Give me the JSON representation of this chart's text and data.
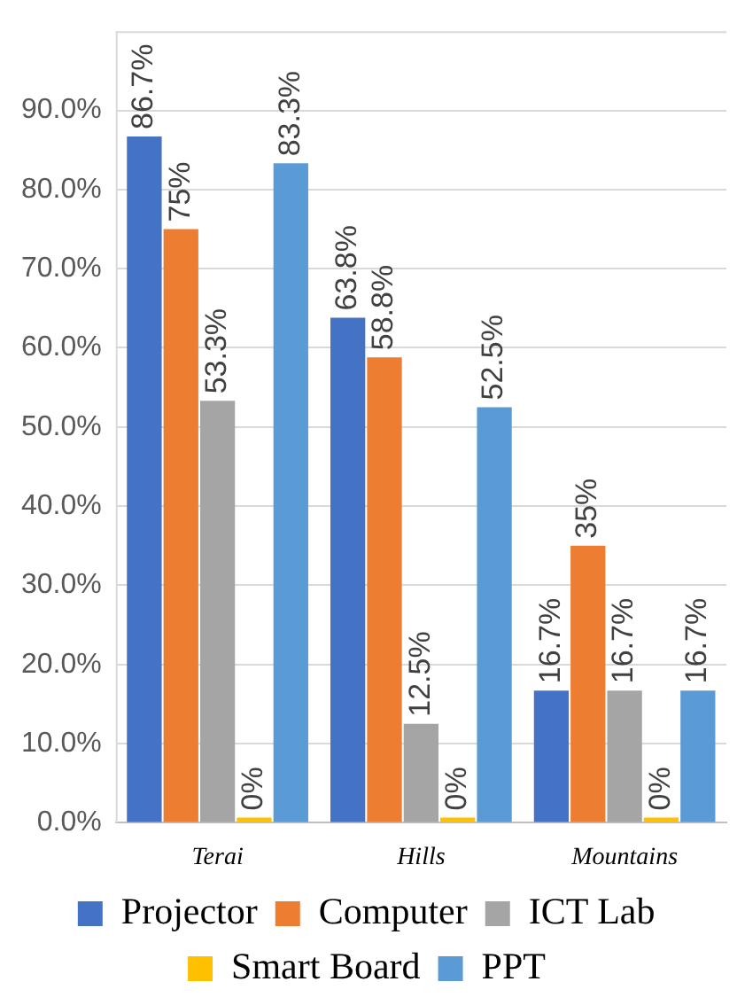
{
  "chart_data": {
    "type": "bar",
    "categories": [
      "Terai",
      "Hills",
      "Mountains"
    ],
    "series": [
      {
        "name": "Projector",
        "color": "#4472c4",
        "values": [
          86.7,
          63.8,
          16.7
        ],
        "value_labels": [
          "86.7%",
          "63.8%",
          "16.7%"
        ]
      },
      {
        "name": "Computer",
        "color": "#ed7d31",
        "values": [
          75,
          58.8,
          35
        ],
        "value_labels": [
          "75%",
          "58.8%",
          "35%"
        ]
      },
      {
        "name": "ICT Lab",
        "color": "#a5a5a5",
        "values": [
          53.3,
          12.5,
          16.7
        ],
        "value_labels": [
          "53.3%",
          "12.5%",
          "16.7%"
        ]
      },
      {
        "name": "Smart Board",
        "color": "#ffc000",
        "values": [
          0,
          0,
          0
        ],
        "value_labels": [
          "0%",
          "0%",
          "0%"
        ]
      },
      {
        "name": "PPT",
        "color": "#5b9bd5",
        "values": [
          83.3,
          52.5,
          16.7
        ],
        "value_labels": [
          "83.3%",
          "52.5%",
          "16.7%"
        ]
      }
    ],
    "ylim": [
      0,
      100
    ],
    "yticks": [
      {
        "value": 0,
        "label": "0.0%"
      },
      {
        "value": 10,
        "label": "10.0%"
      },
      {
        "value": 20,
        "label": "20.0%"
      },
      {
        "value": 30,
        "label": "30.0%"
      },
      {
        "value": 40,
        "label": "40.0%"
      },
      {
        "value": 50,
        "label": "50.0%"
      },
      {
        "value": 60,
        "label": "60.0%"
      },
      {
        "value": 70,
        "label": "70.0%"
      },
      {
        "value": 80,
        "label": "80.0%"
      },
      {
        "value": 90,
        "label": "90.0%"
      }
    ],
    "grid": "y",
    "legend": "bottom"
  }
}
